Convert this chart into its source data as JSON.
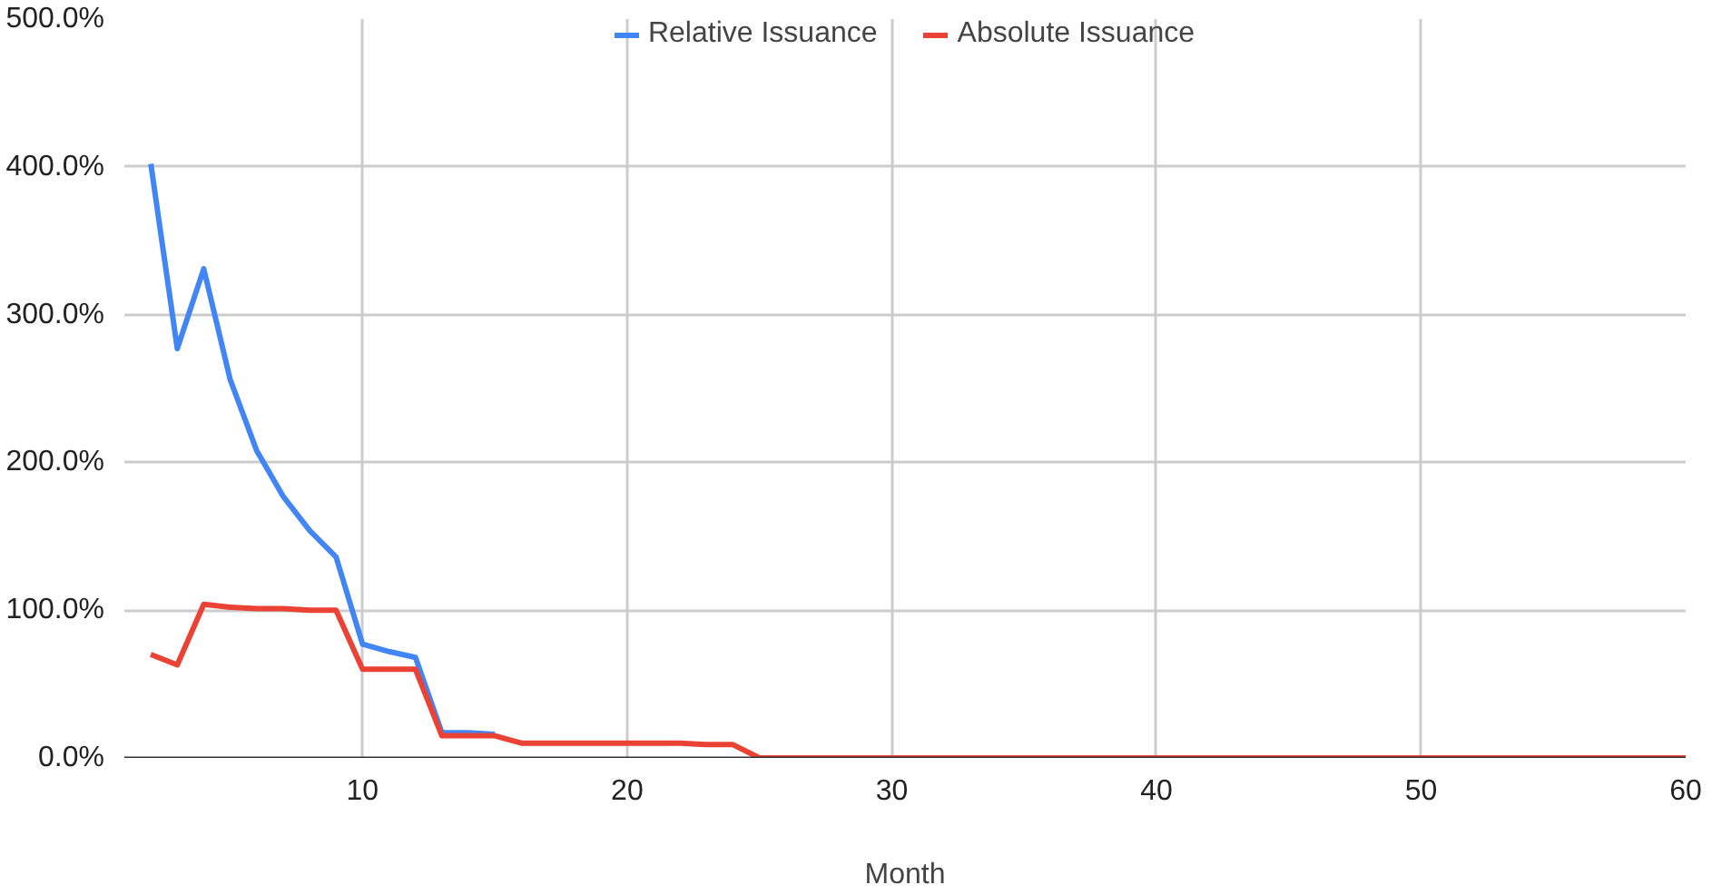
{
  "chart_data": {
    "type": "line",
    "xlabel": "Month",
    "xlim": [
      1,
      60
    ],
    "xticks": [
      10,
      20,
      30,
      40,
      50,
      60
    ],
    "ylim": [
      0,
      500
    ],
    "yticks": [
      {
        "value": 0,
        "label": "0.0%"
      },
      {
        "value": 100,
        "label": "100.0%"
      },
      {
        "value": 200,
        "label": "200.0%"
      },
      {
        "value": 300,
        "label": "300.0%"
      },
      {
        "value": 400,
        "label": "400.0%"
      },
      {
        "value": 500,
        "label": "500.0%"
      }
    ],
    "grid": true,
    "legend": "top",
    "line_style": "solid",
    "marker": "none",
    "series": [
      {
        "name": "Relative Issuance",
        "color": "#4285f4",
        "x": [
          2,
          3,
          4,
          5,
          6,
          7,
          8,
          9,
          10,
          11,
          12,
          13,
          14,
          15
        ],
        "values": [
          402,
          277,
          331,
          256,
          208,
          177,
          154,
          136,
          77,
          72,
          68,
          17,
          17,
          16
        ]
      },
      {
        "name": "Absolute Issuance",
        "color": "#ea4335",
        "x": [
          2,
          3,
          4,
          5,
          6,
          7,
          8,
          9,
          10,
          11,
          12,
          13,
          14,
          15,
          16,
          17,
          18,
          19,
          20,
          21,
          22,
          23,
          24,
          25,
          60
        ],
        "values": [
          70,
          63,
          104,
          102,
          101,
          101,
          100,
          100,
          60,
          60,
          60,
          15,
          15,
          15,
          10,
          10,
          10,
          10,
          10,
          10,
          10,
          9,
          9,
          0,
          0
        ]
      }
    ]
  }
}
